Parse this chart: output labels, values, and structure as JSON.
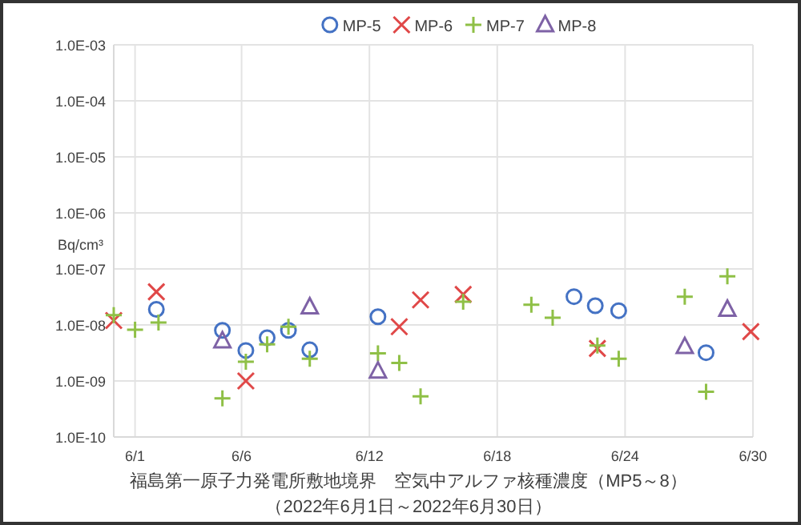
{
  "chart_data": {
    "type": "scatter",
    "title": "福島第一原子力発電所敷地境界　空気中アルファ核種濃度（MP5～8）",
    "subtitle": "（2022年6月1日～2022年6月30日）",
    "ylabel": "Bq/cm³",
    "log": "y",
    "grid": true,
    "legend": "top",
    "xlim": [
      "--05-31",
      "--06-30"
    ],
    "xticks": [
      {
        "value": "--06-01",
        "label": "6/1"
      },
      {
        "value": "--06-06",
        "label": "6/6"
      },
      {
        "value": "--06-12",
        "label": "6/12"
      },
      {
        "value": "--06-18",
        "label": "6/18"
      },
      {
        "value": "--06-24",
        "label": "6/24"
      },
      {
        "value": "--06-30",
        "label": "6/30"
      }
    ],
    "ylim": [
      1e-10,
      0.001
    ],
    "yticks": [
      {
        "value": 1e-10,
        "label": "1.0E-10"
      },
      {
        "value": 1e-09,
        "label": "1.0E-09"
      },
      {
        "value": 1e-08,
        "label": "1.0E-08"
      },
      {
        "value": 1e-07,
        "label": "1.0E-07"
      },
      {
        "value": 1e-06,
        "label": "1.0E-06"
      },
      {
        "value": 1e-05,
        "label": "1.0E-05"
      },
      {
        "value": 0.0001,
        "label": "1.0E-04"
      },
      {
        "value": 0.001,
        "label": "1.0E-03"
      }
    ],
    "series": [
      {
        "name": "MP-5",
        "color": "#4472c4",
        "marker": "circle",
        "x": [
          "--06-02T00:00",
          "--06-05T02:24",
          "--06-06T04:48",
          "--06-07T04:48",
          "--06-08T04:48",
          "--06-09T04:48",
          "--06-12T09:36",
          "--06-21T14:24",
          "--06-22T14:24",
          "--06-23T16:48",
          "--06-27T19:12"
        ],
        "values": [
          1.9e-08,
          8e-09,
          3.5e-09,
          5.9e-09,
          8e-09,
          3.6e-09,
          1.4e-08,
          3.2e-08,
          2.2e-08,
          1.8e-08,
          3.2e-09
        ]
      },
      {
        "name": "MP-6",
        "color": "#e04848",
        "marker": "cross",
        "x": [
          "--05-31T00:00",
          "--06-02T00:00",
          "--06-06T04:48",
          "--06-13T09:36",
          "--06-14T09:36",
          "--06-16T09:36",
          "--06-22T16:48",
          "--06-29T21:36"
        ],
        "values": [
          1.2e-08,
          3.9e-08,
          1e-09,
          9.3e-09,
          2.8e-08,
          3.5e-08,
          3.8e-09,
          7.6e-09
        ]
      },
      {
        "name": "MP-7",
        "color": "#8fc046",
        "marker": "plus",
        "x": [
          "--05-31T00:00",
          "--06-01T00:00",
          "--06-02T02:24",
          "--06-05T02:24",
          "--06-06T04:48",
          "--06-07T04:48",
          "--06-08T04:48",
          "--06-09T04:48",
          "--06-12T09:36",
          "--06-13T09:36",
          "--06-14T09:36",
          "--06-16T09:36",
          "--06-19T14:24",
          "--06-20T14:24",
          "--06-22T16:48",
          "--06-23T16:48",
          "--06-26T19:12",
          "--06-27T19:12",
          "--06-28T19:12"
        ],
        "values": [
          1.5e-08,
          8.2e-09,
          1.1e-08,
          4.9e-10,
          2.2e-09,
          4.5e-09,
          9.3e-09,
          2.5e-09,
          3.1e-09,
          2.1e-09,
          5.3e-10,
          2.6e-08,
          2.3e-08,
          1.35e-08,
          4.3e-09,
          2.5e-09,
          3.2e-08,
          6.4e-10,
          7.4e-08
        ]
      },
      {
        "name": "MP-8",
        "color": "#7e62a6",
        "marker": "triangle",
        "x": [
          "--06-05T02:24",
          "--06-09T04:48",
          "--06-12T09:36",
          "--06-26T19:12",
          "--06-28T19:12"
        ],
        "values": [
          5.2e-09,
          2.1e-08,
          1.5e-09,
          4.1e-09,
          1.9e-08
        ]
      }
    ]
  }
}
